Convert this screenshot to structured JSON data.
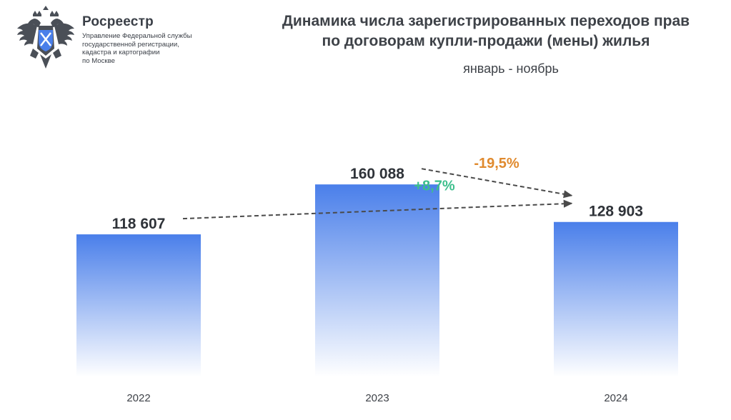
{
  "header": {
    "brand_name": "Росреестр",
    "brand_sub": [
      "Управление Федеральной службы",
      "государственной регистрации,",
      "кадастра и картографии",
      "по Москве"
    ],
    "logo_icon": "double-headed-eagle-emblem-icon"
  },
  "chart_data": {
    "type": "bar",
    "title": [
      "Динамика числа зарегистрированных переходов прав",
      "по договорам купли-продажи (мены) жилья"
    ],
    "subtitle": "январь - ноябрь",
    "categories": [
      "2022",
      "2023",
      "2024"
    ],
    "values": [
      118607,
      160088,
      128903
    ],
    "value_labels": [
      "118 607",
      "160 088",
      "128 903"
    ],
    "ylim": [
      0,
      178000
    ],
    "grid": false,
    "legend": "none",
    "bar_color_top": "#4a7fea",
    "bar_color_bottom": "#ffffff",
    "annotations": [
      {
        "text": "-19,5%",
        "from": "2023",
        "to": "2024",
        "color": "#e08a2e"
      },
      {
        "text": "+8,7%",
        "from": "2022",
        "to": "2024",
        "color": "#3dbf8c"
      }
    ]
  }
}
